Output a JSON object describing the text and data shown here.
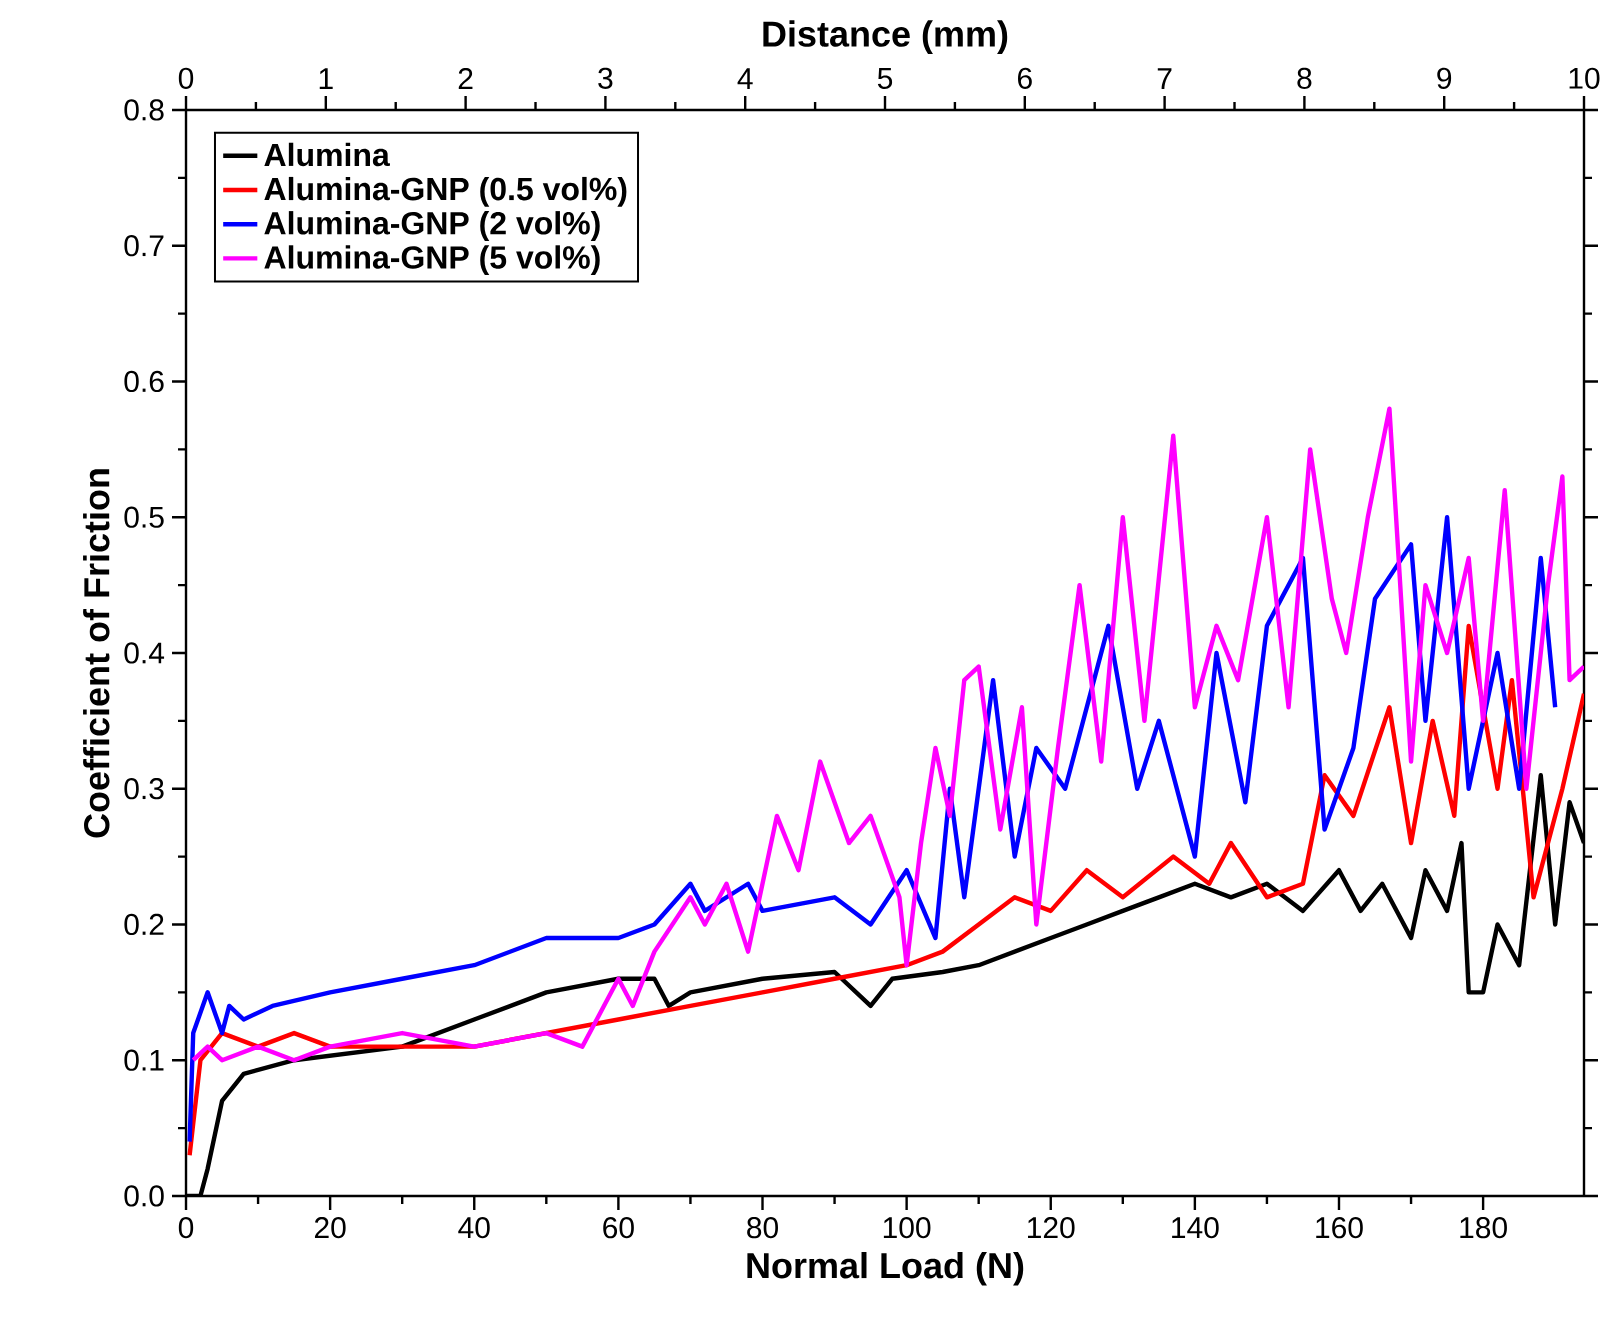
{
  "chart_data": {
    "type": "line",
    "xlabel": "Normal Load (N)",
    "ylabel": "Coefficient of Friction",
    "x2label": "Distance (mm)",
    "xlim": [
      0,
      194
    ],
    "xticks": [
      0,
      20,
      40,
      60,
      80,
      100,
      120,
      140,
      160,
      180
    ],
    "x2lim": [
      0,
      10
    ],
    "x2ticks": [
      0,
      1,
      2,
      3,
      4,
      5,
      6,
      7,
      8,
      9,
      10
    ],
    "ylim": [
      0,
      0.8
    ],
    "yticks": [
      {
        "value": 0,
        "label": "0.0"
      },
      0.1,
      0.2,
      0.3,
      0.4,
      0.5,
      0.6,
      0.7,
      0.8
    ],
    "legend": "top left",
    "grid": false,
    "marker": "none",
    "line_style": "solid",
    "series": [
      {
        "name": "Alumina",
        "color": "#000000",
        "x": [
          0,
          2,
          3,
          5,
          8,
          15,
          30,
          40,
          50,
          60,
          65,
          67,
          70,
          80,
          90,
          95,
          98,
          105,
          110,
          115,
          120,
          125,
          130,
          135,
          140,
          145,
          150,
          155,
          160,
          163,
          166,
          170,
          172,
          175,
          177,
          178,
          180,
          182,
          185,
          188,
          190,
          192,
          194
        ],
        "values": [
          0,
          0,
          0.02,
          0.07,
          0.09,
          0.1,
          0.11,
          0.13,
          0.15,
          0.16,
          0.16,
          0.14,
          0.15,
          0.16,
          0.165,
          0.14,
          0.16,
          0.165,
          0.17,
          0.18,
          0.19,
          0.2,
          0.21,
          0.22,
          0.23,
          0.22,
          0.23,
          0.21,
          0.24,
          0.21,
          0.23,
          0.19,
          0.24,
          0.21,
          0.26,
          0.15,
          0.15,
          0.2,
          0.17,
          0.31,
          0.2,
          0.29,
          0.26
        ]
      },
      {
        "name": "Alumina-GNP (0.5 vol%)",
        "color": "#ff0000",
        "x": [
          0.5,
          2,
          5,
          10,
          15,
          20,
          40,
          50,
          60,
          70,
          80,
          90,
          100,
          105,
          110,
          115,
          120,
          125,
          130,
          137,
          142,
          145,
          150,
          155,
          158,
          162,
          167,
          170,
          173,
          176,
          178,
          182,
          184,
          187,
          191,
          194
        ],
        "values": [
          0.03,
          0.1,
          0.12,
          0.11,
          0.12,
          0.11,
          0.11,
          0.12,
          0.13,
          0.14,
          0.15,
          0.16,
          0.17,
          0.18,
          0.2,
          0.22,
          0.21,
          0.24,
          0.22,
          0.25,
          0.23,
          0.26,
          0.22,
          0.23,
          0.31,
          0.28,
          0.36,
          0.26,
          0.35,
          0.28,
          0.42,
          0.3,
          0.38,
          0.22,
          0.3,
          0.37
        ]
      },
      {
        "name": "Alumina-GNP (2 vol%)",
        "color": "#0000ff",
        "x": [
          0.5,
          1,
          3,
          5,
          6,
          8,
          12,
          20,
          30,
          40,
          50,
          60,
          65,
          70,
          72,
          78,
          80,
          90,
          95,
          100,
          104,
          106,
          108,
          112,
          115,
          118,
          122,
          128,
          132,
          135,
          140,
          143,
          147,
          150,
          155,
          158,
          162,
          165,
          170,
          172,
          175,
          178,
          182,
          185,
          188,
          190
        ],
        "values": [
          0.04,
          0.12,
          0.15,
          0.12,
          0.14,
          0.13,
          0.14,
          0.15,
          0.16,
          0.17,
          0.19,
          0.19,
          0.2,
          0.23,
          0.21,
          0.23,
          0.21,
          0.22,
          0.2,
          0.24,
          0.19,
          0.3,
          0.22,
          0.38,
          0.25,
          0.33,
          0.3,
          0.42,
          0.3,
          0.35,
          0.25,
          0.4,
          0.29,
          0.42,
          0.47,
          0.27,
          0.33,
          0.44,
          0.48,
          0.35,
          0.5,
          0.3,
          0.4,
          0.3,
          0.47,
          0.36
        ]
      },
      {
        "name": "Alumina-GNP (5 vol%)",
        "color": "#ff00ff",
        "x": [
          1,
          3,
          5,
          10,
          15,
          20,
          30,
          40,
          50,
          55,
          58,
          60,
          62,
          65,
          70,
          72,
          75,
          78,
          82,
          85,
          88,
          92,
          95,
          99,
          100,
          102,
          104,
          106,
          108,
          110,
          113,
          116,
          118,
          121,
          124,
          127,
          130,
          133,
          137,
          140,
          143,
          146,
          150,
          153,
          156,
          159,
          161,
          164,
          167,
          170,
          172,
          175,
          178,
          180,
          183,
          186,
          189,
          191,
          192,
          194
        ],
        "values": [
          0.1,
          0.11,
          0.1,
          0.11,
          0.1,
          0.11,
          0.12,
          0.11,
          0.12,
          0.11,
          0.14,
          0.16,
          0.14,
          0.18,
          0.22,
          0.2,
          0.23,
          0.18,
          0.28,
          0.24,
          0.32,
          0.26,
          0.28,
          0.22,
          0.17,
          0.26,
          0.33,
          0.28,
          0.38,
          0.39,
          0.27,
          0.36,
          0.2,
          0.33,
          0.45,
          0.32,
          0.5,
          0.35,
          0.56,
          0.36,
          0.42,
          0.38,
          0.5,
          0.36,
          0.55,
          0.44,
          0.4,
          0.5,
          0.58,
          0.32,
          0.45,
          0.4,
          0.47,
          0.35,
          0.52,
          0.3,
          0.45,
          0.53,
          0.38,
          0.39
        ]
      }
    ]
  }
}
